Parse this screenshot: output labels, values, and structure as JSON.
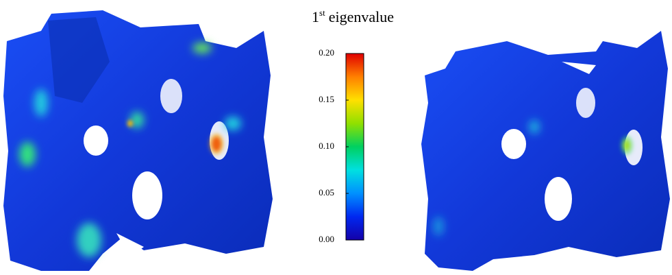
{
  "colorbar": {
    "title": {
      "base": "1",
      "superscript": "st",
      "text": "eigenvalue"
    },
    "lim": [
      0,
      0.2
    ],
    "ticks": [
      {
        "value": 0,
        "label": "0.00"
      },
      {
        "value": 0.05,
        "label": "0.05"
      },
      {
        "value": 0.1,
        "label": "0.10"
      },
      {
        "value": 0.15,
        "label": "0.15"
      },
      {
        "value": 0.2,
        "label": "0.20"
      }
    ],
    "colormap": [
      "#1400a8",
      "#0028f0",
      "#0090ff",
      "#00e0e0",
      "#00d060",
      "#90e000",
      "#ffe000",
      "#ff8000",
      "#e00000"
    ]
  }
}
